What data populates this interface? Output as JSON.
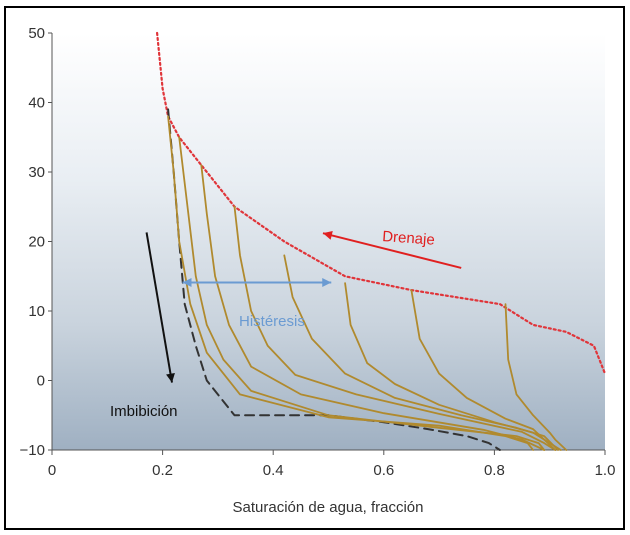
{
  "chart_data": {
    "type": "line",
    "title": "",
    "xlabel": "Saturación de agua, fracción",
    "ylabel": "",
    "xlim": [
      0,
      1.0
    ],
    "ylim": [
      -10,
      50
    ],
    "x_ticks": [
      "0",
      "0.2",
      "0.4",
      "0.6",
      "0.8",
      "1.0"
    ],
    "y_ticks": [
      "50",
      "40",
      "30",
      "20",
      "10",
      "0",
      "−10"
    ],
    "background": "vertical gradient white to slate blue",
    "grid": false,
    "colors": {
      "drainage": "#e0353a",
      "imbibition_bound": "#333333",
      "scanning": "#b08a2e",
      "hysteresis_arrow": "#6b9bd2",
      "drainage_arrow": "#e02020",
      "imbibition_arrow": "#111111"
    },
    "series": [
      {
        "style": "dotted",
        "x": [
          0.19,
          0.2,
          0.21,
          0.23,
          0.27,
          0.33,
          0.42,
          0.53,
          0.65,
          0.81,
          0.87,
          0.93,
          0.98,
          1.0
        ],
        "y": [
          50,
          42,
          38,
          35,
          31,
          25,
          20,
          15,
          13,
          11,
          8,
          7,
          5,
          1
        ]
      },
      {
        "style": "dashed",
        "x": [
          0.21,
          0.22,
          0.23,
          0.24,
          0.26,
          0.28,
          0.33,
          0.5,
          0.6,
          0.68,
          0.75,
          0.79,
          0.81
        ],
        "y": [
          39,
          30,
          20,
          11,
          5,
          0,
          -5,
          -5,
          -6,
          -7,
          -8,
          -9,
          -10
        ]
      },
      {
        "style": "solid",
        "x": [
          0.21,
          0.22,
          0.23,
          0.25,
          0.28,
          0.34,
          0.5,
          0.7,
          0.82,
          0.86,
          0.87
        ],
        "y": [
          38,
          30,
          20,
          11,
          4,
          -2,
          -5.3,
          -6.5,
          -8,
          -9,
          -10
        ]
      },
      {
        "style": "solid",
        "x": [
          0.23,
          0.245,
          0.26,
          0.28,
          0.31,
          0.36,
          0.5,
          0.7,
          0.84,
          0.88,
          0.89
        ],
        "y": [
          35,
          25,
          15,
          8,
          3,
          -1.5,
          -5,
          -6.8,
          -8,
          -9,
          -10
        ]
      },
      {
        "style": "solid",
        "x": [
          0.27,
          0.28,
          0.295,
          0.32,
          0.36,
          0.45,
          0.6,
          0.78,
          0.85,
          0.89
        ],
        "y": [
          31,
          24,
          15,
          8,
          2,
          -2,
          -4.7,
          -7.1,
          -8.5,
          -10
        ]
      },
      {
        "style": "solid",
        "x": [
          0.33,
          0.34,
          0.36,
          0.39,
          0.44,
          0.55,
          0.7,
          0.85,
          0.89,
          0.91
        ],
        "y": [
          25,
          18,
          10,
          5,
          0.8,
          -2,
          -4.8,
          -7.4,
          -9,
          -10
        ]
      },
      {
        "style": "solid",
        "x": [
          0.42,
          0.435,
          0.47,
          0.53,
          0.62,
          0.74,
          0.84,
          0.89,
          0.915
        ],
        "y": [
          18,
          12,
          6,
          1,
          -2.5,
          -5,
          -6.8,
          -8,
          -10
        ]
      },
      {
        "style": "solid",
        "x": [
          0.53,
          0.54,
          0.57,
          0.62,
          0.7,
          0.8,
          0.87,
          0.92
        ],
        "y": [
          14,
          8,
          2.5,
          -0.5,
          -3.5,
          -6,
          -7.5,
          -10
        ]
      },
      {
        "style": "solid",
        "x": [
          0.65,
          0.665,
          0.7,
          0.75,
          0.82,
          0.87,
          0.91
        ],
        "y": [
          13,
          6,
          1,
          -2.5,
          -5.5,
          -7,
          -10
        ]
      },
      {
        "style": "solid",
        "x": [
          0.82,
          0.825,
          0.84,
          0.87,
          0.9,
          0.91,
          0.93
        ],
        "y": [
          11,
          3,
          -2,
          -5,
          -7.5,
          -8.5,
          -10
        ]
      }
    ],
    "annotations": {
      "drenaje": "Drenaje",
      "histeresis": "Histéresis",
      "imbibicion": "Imbibición"
    },
    "arrows": [
      {
        "name": "drainage-arrow",
        "from": [
          0.74,
          16.2
        ],
        "to": [
          0.49,
          21.2
        ]
      },
      {
        "name": "hysteresis-arrow",
        "from": [
          0.236,
          14.1
        ],
        "to": [
          0.505,
          14.1
        ]
      },
      {
        "name": "imbibition-arrow",
        "from": [
          0.171,
          21.3
        ],
        "to": [
          0.217,
          -0.3
        ]
      }
    ]
  }
}
